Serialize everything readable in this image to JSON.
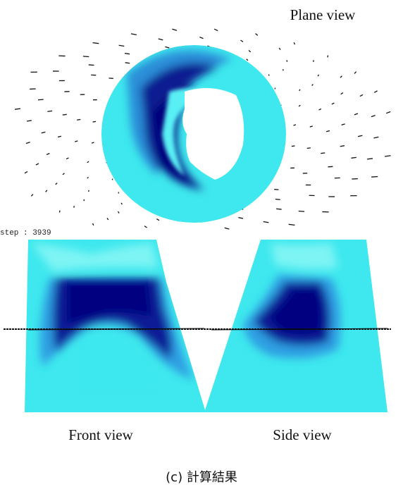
{
  "labels": {
    "plane_view": "Plane view",
    "step": "step : 3939",
    "front_view": "Front view",
    "side_view": "Side view"
  },
  "caption": "(c) 計算結果"
}
